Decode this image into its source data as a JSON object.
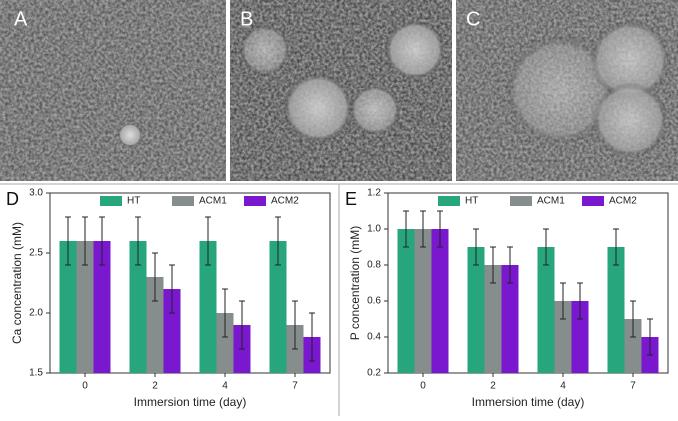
{
  "panels": [
    "A",
    "B",
    "C"
  ],
  "chart_data": [
    {
      "type": "bar",
      "label": "D",
      "ylabel": "Ca concentration (mM)",
      "xlabel": "Immersion time (day)",
      "categories": [
        "0",
        "2",
        "4",
        "7"
      ],
      "series": [
        {
          "name": "HT",
          "color": "#27a67e",
          "values": [
            2.6,
            2.6,
            2.6,
            2.6
          ],
          "errors": [
            0.2,
            0.2,
            0.2,
            0.2
          ]
        },
        {
          "name": "ACM1",
          "color": "#858d8d",
          "values": [
            2.6,
            2.3,
            2.0,
            1.9
          ],
          "errors": [
            0.2,
            0.2,
            0.2,
            0.2
          ]
        },
        {
          "name": "ACM2",
          "color": "#7a18cf",
          "values": [
            2.6,
            2.2,
            1.9,
            1.8
          ],
          "errors": [
            0.2,
            0.2,
            0.2,
            0.2
          ]
        }
      ],
      "ylim": [
        1.5,
        3.0
      ],
      "yticks": [
        1.5,
        {
          "value": 2.0,
          "label": "2.0"
        },
        2.5,
        {
          "value": 3.0,
          "label": "3.0"
        }
      ]
    },
    {
      "type": "bar",
      "label": "E",
      "ylabel": "P concentration (mM)",
      "xlabel": "Immersion time (day)",
      "categories": [
        "0",
        "2",
        "4",
        "7"
      ],
      "series": [
        {
          "name": "HT",
          "color": "#27a67e",
          "values": [
            1.0,
            0.9,
            0.9,
            0.9
          ],
          "errors": [
            0.1,
            0.1,
            0.1,
            0.1
          ]
        },
        {
          "name": "ACM1",
          "color": "#858d8d",
          "values": [
            1.0,
            0.8,
            0.6,
            0.5
          ],
          "errors": [
            0.1,
            0.1,
            0.1,
            0.1
          ]
        },
        {
          "name": "ACM2",
          "color": "#7a18cf",
          "values": [
            1.0,
            0.8,
            0.6,
            0.4
          ],
          "errors": [
            0.1,
            0.1,
            0.1,
            0.1
          ]
        }
      ],
      "ylim": [
        0.2,
        1.2
      ],
      "yticks": [
        0.2,
        0.4,
        0.6,
        0.8,
        {
          "value": 1.0,
          "label": "1.0"
        },
        1.2
      ]
    }
  ]
}
